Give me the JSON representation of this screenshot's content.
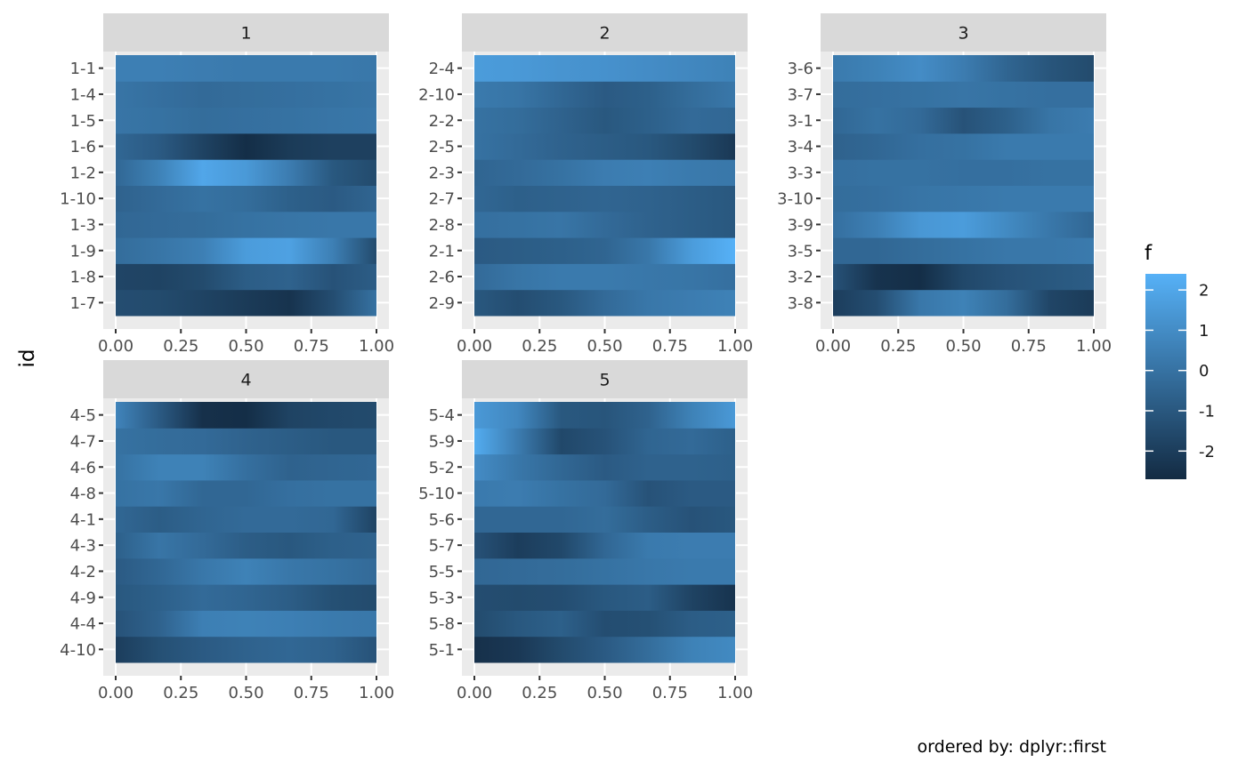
{
  "chart_data": {
    "type": "heatmap",
    "ylabel": "id",
    "caption": "ordered by: dplyr::first",
    "legend": {
      "title": "f",
      "ticks": [
        2,
        1,
        0,
        -1,
        -2
      ],
      "range": [
        -2.7,
        2.4
      ],
      "color_low": "#132B43",
      "color_high": "#56B1F7"
    },
    "x_ticks": [
      "0.00",
      "0.25",
      "0.50",
      "0.75",
      "1.00"
    ],
    "x_range": [
      0,
      1
    ],
    "panels": [
      {
        "strip": "1",
        "rows": [
          {
            "id": "1-7",
            "values": [
              -1.4,
              -1.5,
              -1.8,
              -2.1,
              -2.4,
              -1.4,
              0.0
            ]
          },
          {
            "id": "1-8",
            "values": [
              -1.7,
              -1.8,
              -1.5,
              -0.8,
              -0.6,
              -1.2,
              -0.8
            ]
          },
          {
            "id": "1-9",
            "values": [
              -0.2,
              0.1,
              0.5,
              1.6,
              1.8,
              0.5,
              -1.5
            ]
          },
          {
            "id": "1-3",
            "values": [
              -0.4,
              -0.3,
              -0.2,
              0.0,
              0.1,
              0.2,
              0.2
            ]
          },
          {
            "id": "1-10",
            "values": [
              -0.6,
              -0.3,
              0.0,
              -0.2,
              -0.7,
              -0.9,
              -0.5
            ]
          },
          {
            "id": "1-2",
            "values": [
              -0.4,
              0.6,
              2.0,
              1.5,
              0.4,
              -1.0,
              -1.5
            ]
          },
          {
            "id": "1-6",
            "values": [
              -0.4,
              -0.9,
              -1.8,
              -2.6,
              -2.1,
              -1.9,
              -1.9
            ]
          },
          {
            "id": "1-5",
            "values": [
              0.1,
              0.0,
              -0.2,
              -0.1,
              0.0,
              0.1,
              0.2
            ]
          },
          {
            "id": "1-4",
            "values": [
              0.1,
              -0.1,
              -0.3,
              -0.2,
              -0.1,
              0.0,
              0.1
            ]
          },
          {
            "id": "1-1",
            "values": [
              0.5,
              0.5,
              0.4,
              0.3,
              0.3,
              0.3,
              0.2
            ]
          }
        ]
      },
      {
        "strip": "2",
        "rows": [
          {
            "id": "2-9",
            "values": [
              -1.0,
              -1.4,
              -1.0,
              -0.3,
              0.2,
              0.4,
              0.6
            ]
          },
          {
            "id": "2-6",
            "values": [
              -0.3,
              0.1,
              0.3,
              0.3,
              0.2,
              0.1,
              -0.1
            ]
          },
          {
            "id": "2-1",
            "values": [
              -0.9,
              -0.8,
              -0.7,
              -0.5,
              0.2,
              1.6,
              2.4
            ]
          },
          {
            "id": "2-8",
            "values": [
              -0.1,
              0.0,
              0.1,
              -0.3,
              -0.6,
              -0.8,
              -1.0
            ]
          },
          {
            "id": "2-7",
            "values": [
              -0.4,
              -0.7,
              -0.6,
              -0.5,
              -0.6,
              -0.8,
              -1.0
            ]
          },
          {
            "id": "2-3",
            "values": [
              -0.5,
              -0.3,
              0.0,
              0.4,
              0.5,
              0.3,
              0.2
            ]
          },
          {
            "id": "2-5",
            "values": [
              0.0,
              -0.3,
              -0.6,
              -0.8,
              -1.0,
              -1.5,
              -2.2
            ]
          },
          {
            "id": "2-2",
            "values": [
              0.0,
              -0.2,
              -0.6,
              -1.0,
              -0.7,
              -0.3,
              -0.4
            ]
          },
          {
            "id": "2-10",
            "values": [
              0.3,
              0.1,
              -0.4,
              -0.9,
              -0.7,
              -0.2,
              0.2
            ]
          },
          {
            "id": "2-4",
            "values": [
              1.6,
              1.5,
              1.3,
              1.2,
              1.0,
              0.8,
              0.6
            ]
          }
        ]
      },
      {
        "strip": "3",
        "rows": [
          {
            "id": "3-8",
            "values": [
              -2.0,
              -1.4,
              0.2,
              0.6,
              -0.2,
              -1.7,
              -2.1
            ]
          },
          {
            "id": "3-2",
            "values": [
              -1.2,
              -2.4,
              -2.6,
              -1.6,
              -1.2,
              -1.0,
              -0.8
            ]
          },
          {
            "id": "3-5",
            "values": [
              -0.4,
              -0.4,
              -0.2,
              0.0,
              0.2,
              0.2,
              0.3
            ]
          },
          {
            "id": "3-9",
            "values": [
              -0.1,
              0.5,
              1.4,
              1.6,
              0.9,
              0.2,
              -0.4
            ]
          },
          {
            "id": "3-10",
            "values": [
              -0.2,
              -0.1,
              0.1,
              0.2,
              0.3,
              0.3,
              0.3
            ]
          },
          {
            "id": "3-3",
            "values": [
              -0.1,
              0.0,
              0.0,
              -0.1,
              -0.1,
              0.0,
              0.0
            ]
          },
          {
            "id": "3-4",
            "values": [
              -0.6,
              -0.4,
              -0.1,
              0.0,
              0.3,
              0.3,
              0.3
            ]
          },
          {
            "id": "3-1",
            "values": [
              -0.4,
              0.0,
              -0.3,
              -1.2,
              -0.7,
              0.1,
              0.4
            ]
          },
          {
            "id": "3-7",
            "values": [
              -0.2,
              -0.1,
              0.0,
              0.1,
              0.0,
              -0.1,
              -0.1
            ]
          },
          {
            "id": "3-6",
            "values": [
              0.3,
              0.6,
              1.0,
              0.4,
              -0.5,
              -1.1,
              -1.5
            ]
          }
        ]
      },
      {
        "strip": "4",
        "rows": [
          {
            "id": "4-10",
            "values": [
              -2.0,
              -1.3,
              -0.9,
              -0.6,
              -0.4,
              -0.6,
              -1.2
            ]
          },
          {
            "id": "4-4",
            "values": [
              -1.2,
              -0.6,
              0.5,
              0.6,
              0.5,
              0.3,
              0.2
            ]
          },
          {
            "id": "4-9",
            "values": [
              -1.0,
              -0.7,
              -0.3,
              -0.5,
              -0.8,
              -1.3,
              -1.5
            ]
          },
          {
            "id": "4-2",
            "values": [
              -0.9,
              -0.4,
              0.2,
              0.6,
              0.2,
              0.0,
              -0.3
            ]
          },
          {
            "id": "4-3",
            "values": [
              -0.7,
              0.1,
              -0.3,
              -0.8,
              -1.0,
              -0.7,
              -0.6
            ]
          },
          {
            "id": "4-1",
            "values": [
              -0.4,
              -0.8,
              -0.5,
              -0.3,
              -0.3,
              -0.4,
              -1.8
            ]
          },
          {
            "id": "4-8",
            "values": [
              0.0,
              0.2,
              -0.4,
              -0.4,
              -0.1,
              0.0,
              0.0
            ]
          },
          {
            "id": "4-6",
            "values": [
              0.0,
              0.6,
              0.6,
              -0.1,
              -0.6,
              -0.5,
              -0.4
            ]
          },
          {
            "id": "4-7",
            "values": [
              0.0,
              -0.2,
              -0.3,
              -0.6,
              -0.8,
              -1.0,
              -1.0
            ]
          },
          {
            "id": "4-5",
            "values": [
              0.7,
              -0.9,
              -2.5,
              -2.6,
              -1.8,
              -1.6,
              -1.5
            ]
          }
        ]
      },
      {
        "strip": "5",
        "rows": [
          {
            "id": "5-1",
            "values": [
              -2.5,
              -2.2,
              -1.5,
              -0.9,
              -0.2,
              0.6,
              0.9
            ]
          },
          {
            "id": "5-8",
            "values": [
              -1.5,
              -1.0,
              -0.7,
              -1.4,
              -1.3,
              -0.8,
              -0.7
            ]
          },
          {
            "id": "5-3",
            "values": [
              -1.4,
              -1.5,
              -1.4,
              -1.0,
              -0.8,
              -1.8,
              -2.4
            ]
          },
          {
            "id": "5-5",
            "values": [
              -0.4,
              -0.3,
              -0.2,
              0.0,
              0.2,
              0.3,
              0.3
            ]
          },
          {
            "id": "5-7",
            "values": [
              -1.2,
              -2.0,
              -1.6,
              -0.4,
              0.3,
              0.4,
              0.4
            ]
          },
          {
            "id": "5-6",
            "values": [
              -0.4,
              -0.4,
              -0.4,
              -0.2,
              -0.8,
              -1.2,
              -1.0
            ]
          },
          {
            "id": "5-10",
            "values": [
              0.3,
              0.4,
              0.0,
              -0.3,
              -1.2,
              -0.9,
              -0.9
            ]
          },
          {
            "id": "5-2",
            "values": [
              1.0,
              0.2,
              -0.4,
              -0.9,
              -0.6,
              -0.6,
              -0.7
            ]
          },
          {
            "id": "5-9",
            "values": [
              2.2,
              0.4,
              -1.6,
              -1.2,
              -0.5,
              -0.3,
              -0.7
            ]
          },
          {
            "id": "5-4",
            "values": [
              1.5,
              0.8,
              -1.0,
              -1.1,
              -0.6,
              0.6,
              1.5
            ]
          }
        ]
      }
    ]
  }
}
